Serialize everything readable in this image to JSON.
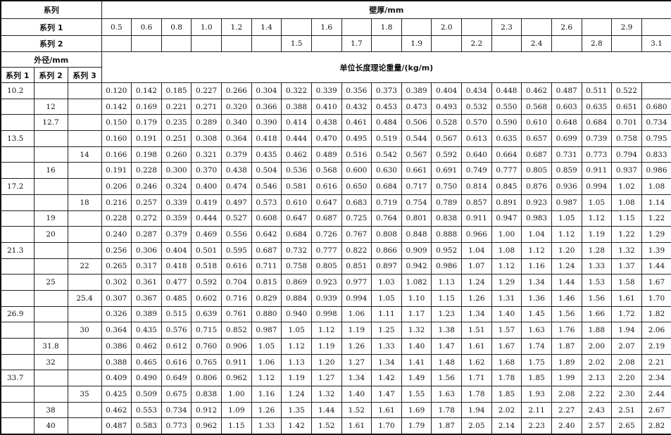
{
  "header": {
    "series_label": "系列",
    "wall_thickness_label": "壁厚/mm",
    "series1_label": "系列 1",
    "series2_label": "系列 2",
    "outer_diameter_label": "外径/mm",
    "od_series1": "系列 1",
    "od_series2": "系列 2",
    "od_series3": "系列 3",
    "weight_label": "单位长度理论重量/(kg/m)",
    "thickness_series1": [
      "0.5",
      "0.6",
      "0.8",
      "1.0",
      "1.2",
      "1.4",
      "",
      "1.6",
      "",
      "1.8",
      "",
      "2.0",
      "",
      "2.3",
      "",
      "2.6",
      "",
      "2.9",
      ""
    ],
    "thickness_series2": [
      "",
      "",
      "",
      "",
      "",
      "",
      "1.5",
      "",
      "1.7",
      "",
      "1.9",
      "",
      "2.2",
      "",
      "2.4",
      "",
      "2.8",
      "",
      "3.1"
    ]
  },
  "rows": [
    {
      "s1": "10.2",
      "s2": "",
      "s3": "",
      "v": [
        "0.120",
        "0.142",
        "0.185",
        "0.227",
        "0.266",
        "0.304",
        "0.322",
        "0.339",
        "0.356",
        "0.373",
        "0.389",
        "0.404",
        "0.434",
        "0.448",
        "0.462",
        "0.487",
        "0.511",
        "0.522",
        ""
      ]
    },
    {
      "s1": "",
      "s2": "12",
      "s3": "",
      "v": [
        "0.142",
        "0.169",
        "0.221",
        "0.271",
        "0.320",
        "0.366",
        "0.388",
        "0.410",
        "0.432",
        "0.453",
        "0.473",
        "0.493",
        "0.532",
        "0.550",
        "0.568",
        "0.603",
        "0.635",
        "0.651",
        "0.680"
      ]
    },
    {
      "s1": "",
      "s2": "12.7",
      "s3": "",
      "v": [
        "0.150",
        "0.179",
        "0.235",
        "0.289",
        "0.340",
        "0.390",
        "0.414",
        "0.438",
        "0.461",
        "0.484",
        "0.506",
        "0.528",
        "0.570",
        "0.590",
        "0.610",
        "0.648",
        "0.684",
        "0.701",
        "0.734"
      ]
    },
    {
      "s1": "13.5",
      "s2": "",
      "s3": "",
      "v": [
        "0.160",
        "0.191",
        "0.251",
        "0.308",
        "0.364",
        "0.418",
        "0.444",
        "0.470",
        "0.495",
        "0.519",
        "0.544",
        "0.567",
        "0.613",
        "0.635",
        "0.657",
        "0.699",
        "0.739",
        "0.758",
        "0.795"
      ]
    },
    {
      "s1": "",
      "s2": "",
      "s3": "14",
      "v": [
        "0.166",
        "0.198",
        "0.260",
        "0.321",
        "0.379",
        "0.435",
        "0.462",
        "0.489",
        "0.516",
        "0.542",
        "0.567",
        "0.592",
        "0.640",
        "0.664",
        "0.687",
        "0.731",
        "0.773",
        "0.794",
        "0.833"
      ]
    },
    {
      "s1": "",
      "s2": "16",
      "s3": "",
      "v": [
        "0.191",
        "0.228",
        "0.300",
        "0.370",
        "0.438",
        "0.504",
        "0.536",
        "0.568",
        "0.600",
        "0.630",
        "0.661",
        "0.691",
        "0.749",
        "0.777",
        "0.805",
        "0.859",
        "0.911",
        "0.937",
        "0.986"
      ]
    },
    {
      "s1": "17.2",
      "s2": "",
      "s3": "",
      "v": [
        "0.206",
        "0.246",
        "0.324",
        "0.400",
        "0.474",
        "0.546",
        "0.581",
        "0.616",
        "0.650",
        "0.684",
        "0.717",
        "0.750",
        "0.814",
        "0.845",
        "0.876",
        "0.936",
        "0.994",
        "1.02",
        "1.08"
      ]
    },
    {
      "s1": "",
      "s2": "",
      "s3": "18",
      "v": [
        "0.216",
        "0.257",
        "0.339",
        "0.419",
        "0.497",
        "0.573",
        "0.610",
        "0.647",
        "0.683",
        "0.719",
        "0.754",
        "0.789",
        "0.857",
        "0.891",
        "0.923",
        "0.987",
        "1.05",
        "1.08",
        "1.14"
      ]
    },
    {
      "s1": "",
      "s2": "19",
      "s3": "",
      "v": [
        "0.228",
        "0.272",
        "0.359",
        "0.444",
        "0.527",
        "0.608",
        "0.647",
        "0.687",
        "0.725",
        "0.764",
        "0.801",
        "0.838",
        "0.911",
        "0.947",
        "0.983",
        "1.05",
        "1.12",
        "1.15",
        "1.22"
      ]
    },
    {
      "s1": "",
      "s2": "20",
      "s3": "",
      "v": [
        "0.240",
        "0.287",
        "0.379",
        "0.469",
        "0.556",
        "0.642",
        "0.684",
        "0.726",
        "0.767",
        "0.808",
        "0.848",
        "0.888",
        "0.966",
        "1.00",
        "1.04",
        "1.12",
        "1.19",
        "1.22",
        "1.29"
      ]
    },
    {
      "s1": "21.3",
      "s2": "",
      "s3": "",
      "v": [
        "0.256",
        "0.306",
        "0.404",
        "0.501",
        "0.595",
        "0.687",
        "0.732",
        "0.777",
        "0.822",
        "0.866",
        "0.909",
        "0.952",
        "1.04",
        "1.08",
        "1.12",
        "1.20",
        "1.28",
        "1.32",
        "1.39"
      ]
    },
    {
      "s1": "",
      "s2": "",
      "s3": "22",
      "v": [
        "0.265",
        "0.317",
        "0.418",
        "0.518",
        "0.616",
        "0.711",
        "0.758",
        "0.805",
        "0.851",
        "0.897",
        "0.942",
        "0.986",
        "1.07",
        "1.12",
        "1.16",
        "1.24",
        "1.33",
        "1.37",
        "1.44"
      ]
    },
    {
      "s1": "",
      "s2": "25",
      "s3": "",
      "v": [
        "0.302",
        "0.361",
        "0.477",
        "0.592",
        "0.704",
        "0.815",
        "0.869",
        "0.923",
        "0.977",
        "1.03",
        "1.082",
        "1.13",
        "1.24",
        "1.29",
        "1.34",
        "1.44",
        "1.53",
        "1.58",
        "1.67"
      ]
    },
    {
      "s1": "",
      "s2": "",
      "s3": "25.4",
      "v": [
        "0.307",
        "0.367",
        "0.485",
        "0.602",
        "0.716",
        "0.829",
        "0.884",
        "0.939",
        "0.994",
        "1.05",
        "1.10",
        "1.15",
        "1.26",
        "1.31",
        "1.36",
        "1.46",
        "1.56",
        "1.61",
        "1.70"
      ]
    },
    {
      "s1": "26.9",
      "s2": "",
      "s3": "",
      "v": [
        "0.326",
        "0.389",
        "0.515",
        "0.639",
        "0.761",
        "0.880",
        "0.940",
        "0.998",
        "1.06",
        "1.11",
        "1.17",
        "1.23",
        "1.34",
        "1.40",
        "1.45",
        "1.56",
        "1.66",
        "1.72",
        "1.82"
      ]
    },
    {
      "s1": "",
      "s2": "",
      "s3": "30",
      "v": [
        "0.364",
        "0.435",
        "0.576",
        "0.715",
        "0.852",
        "0.987",
        "1.05",
        "1.12",
        "1.19",
        "1.25",
        "1.32",
        "1.38",
        "1.51",
        "1.57",
        "1.63",
        "1.76",
        "1.88",
        "1.94",
        "2.06"
      ]
    },
    {
      "s1": "",
      "s2": "31.8",
      "s3": "",
      "v": [
        "0.386",
        "0.462",
        "0.612",
        "0.760",
        "0.906",
        "1.05",
        "1.12",
        "1.19",
        "1.26",
        "1.33",
        "1.40",
        "1.47",
        "1.61",
        "1.67",
        "1.74",
        "1.87",
        "2.00",
        "2.07",
        "2.19"
      ]
    },
    {
      "s1": "",
      "s2": "32",
      "s3": "",
      "v": [
        "0.388",
        "0.465",
        "0.616",
        "0.765",
        "0.911",
        "1.06",
        "1.13",
        "1.20",
        "1.27",
        "1.34",
        "1.41",
        "1.48",
        "1.62",
        "1.68",
        "1.75",
        "1.89",
        "2.02",
        "2.08",
        "2.21"
      ]
    },
    {
      "s1": "33.7",
      "s2": "",
      "s3": "",
      "v": [
        "0.409",
        "0.490",
        "0.649",
        "0.806",
        "0.962",
        "1.12",
        "1.19",
        "1.27",
        "1.34",
        "1.42",
        "1.49",
        "1.56",
        "1.71",
        "1.78",
        "1.85",
        "1.99",
        "2.13",
        "2.20",
        "2.34"
      ]
    },
    {
      "s1": "",
      "s2": "",
      "s3": "35",
      "v": [
        "0.425",
        "0.509",
        "0.675",
        "0.838",
        "1.00",
        "1.16",
        "1.24",
        "1.32",
        "1.40",
        "1.47",
        "1.55",
        "1.63",
        "1.78",
        "1.85",
        "1.93",
        "2.08",
        "2.22",
        "2.30",
        "2.44"
      ]
    },
    {
      "s1": "",
      "s2": "38",
      "s3": "",
      "v": [
        "0.462",
        "0.553",
        "0.734",
        "0.912",
        "1.09",
        "1.26",
        "1.35",
        "1.44",
        "1.52",
        "1.61",
        "1.69",
        "1.78",
        "1.94",
        "2.02",
        "2.11",
        "2.27",
        "2.43",
        "2.51",
        "2.67"
      ]
    },
    {
      "s1": "",
      "s2": "40",
      "s3": "",
      "v": [
        "0.487",
        "0.583",
        "0.773",
        "0.962",
        "1.15",
        "1.33",
        "1.42",
        "1.52",
        "1.61",
        "1.70",
        "1.79",
        "1.87",
        "2.05",
        "2.14",
        "2.23",
        "2.40",
        "2.57",
        "2.65",
        "2.82"
      ]
    }
  ]
}
